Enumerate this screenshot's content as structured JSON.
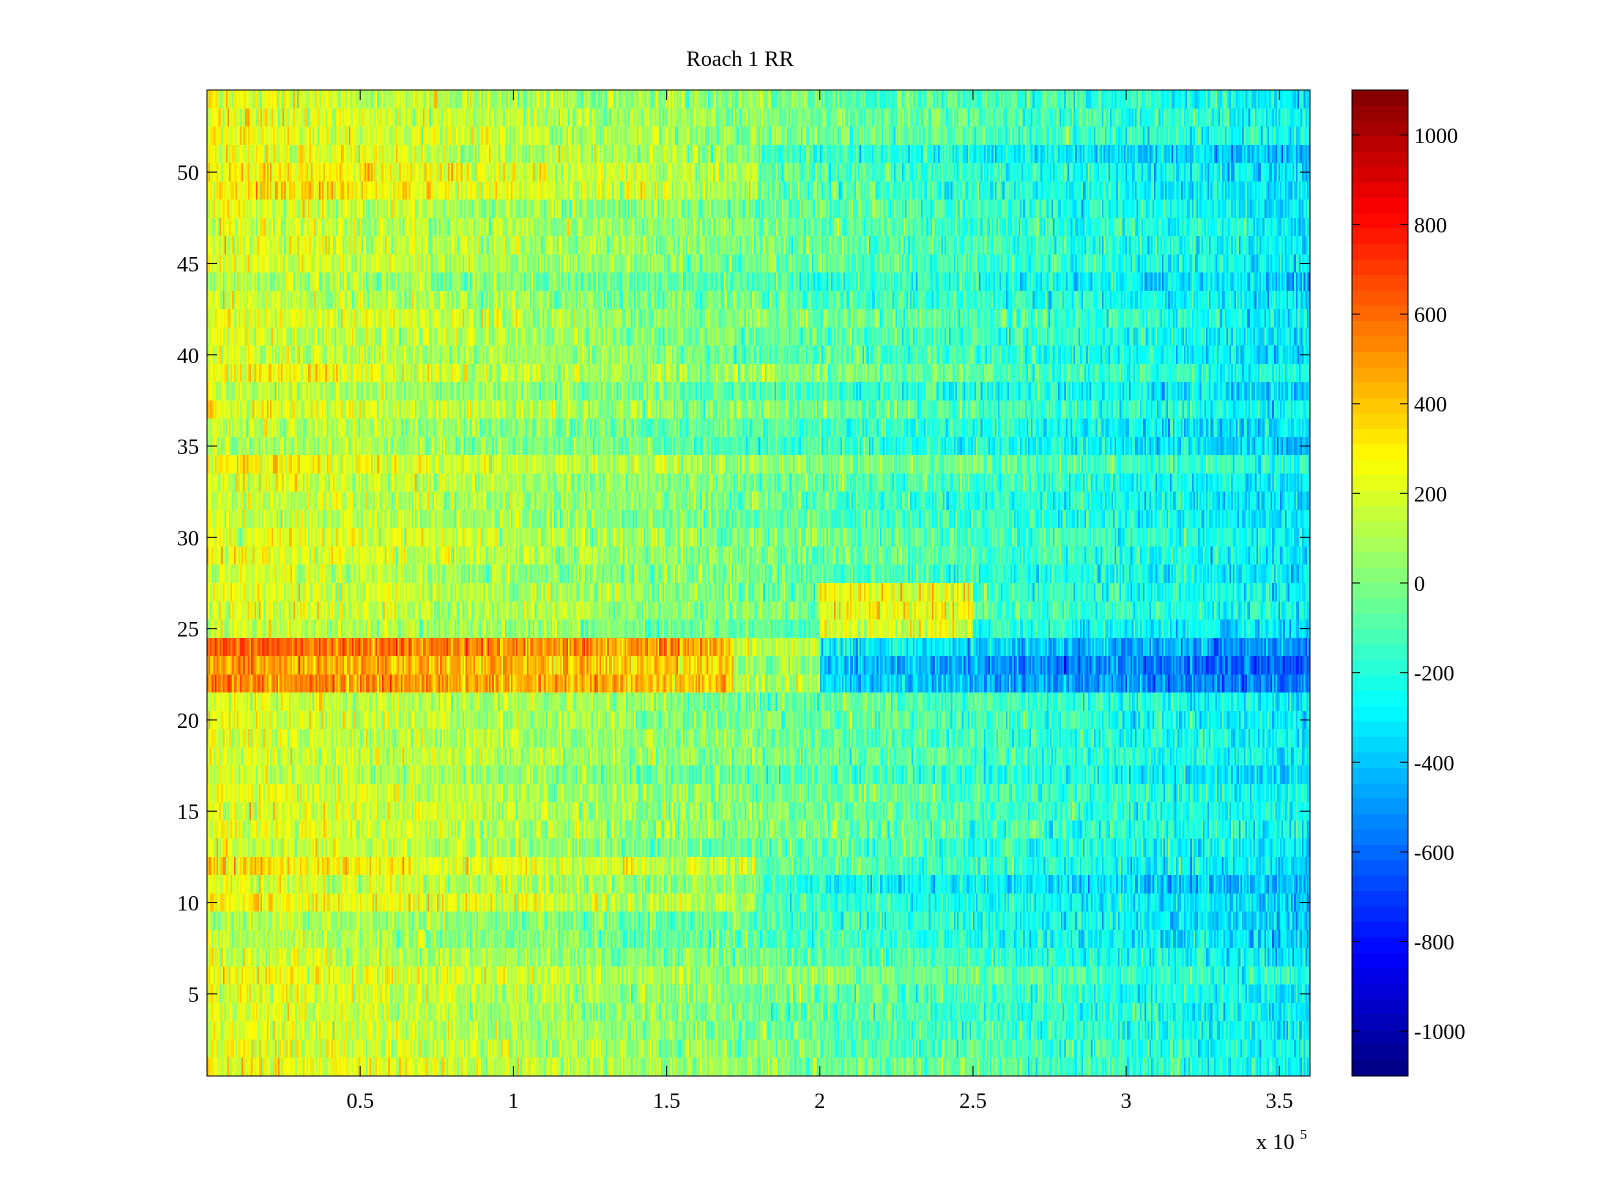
{
  "chart_data": {
    "type": "heatmap",
    "title": "Roach 1 RR",
    "xlabel": "",
    "ylabel": "",
    "x_exponent_label": "x 10",
    "x_exponent": "5",
    "xlim": [
      0,
      3.6
    ],
    "ylim": [
      0.5,
      54.5
    ],
    "rows": 54,
    "x_ticks": [
      0.5,
      1,
      1.5,
      2,
      2.5,
      3,
      3.5
    ],
    "x_tick_labels": [
      "0.5",
      "1",
      "1.5",
      "2",
      "2.5",
      "3",
      "3.5"
    ],
    "y_ticks": [
      5,
      10,
      15,
      20,
      25,
      30,
      35,
      40,
      45,
      50
    ],
    "y_tick_labels": [
      "5",
      "10",
      "15",
      "20",
      "25",
      "30",
      "35",
      "40",
      "45",
      "50"
    ],
    "colormap": "jet",
    "clim": [
      -1100,
      1100
    ],
    "colorbar_ticks": [
      1000,
      800,
      600,
      400,
      200,
      0,
      -200,
      -400,
      -600,
      -800,
      -1000
    ],
    "colorbar_tick_labels": [
      "1000",
      "800",
      "600",
      "400",
      "200",
      "0",
      "-200",
      "-400",
      "-600",
      "-800",
      "-1000"
    ],
    "trend": {
      "description_values": "approximate mean value per region (data units)",
      "left_mean": 200,
      "right_mean": -320,
      "hot_rows": [
        22,
        23,
        24
      ],
      "hot_rows_left_mean": 520,
      "hot_rows_right_mean": -620,
      "hot_rows_break_x": 1.72,
      "warm_rows_right_segment": [
        25,
        26,
        27
      ],
      "warm_rows_segment_mean": 230,
      "warm_segment_x": [
        2.0,
        2.5
      ]
    }
  }
}
